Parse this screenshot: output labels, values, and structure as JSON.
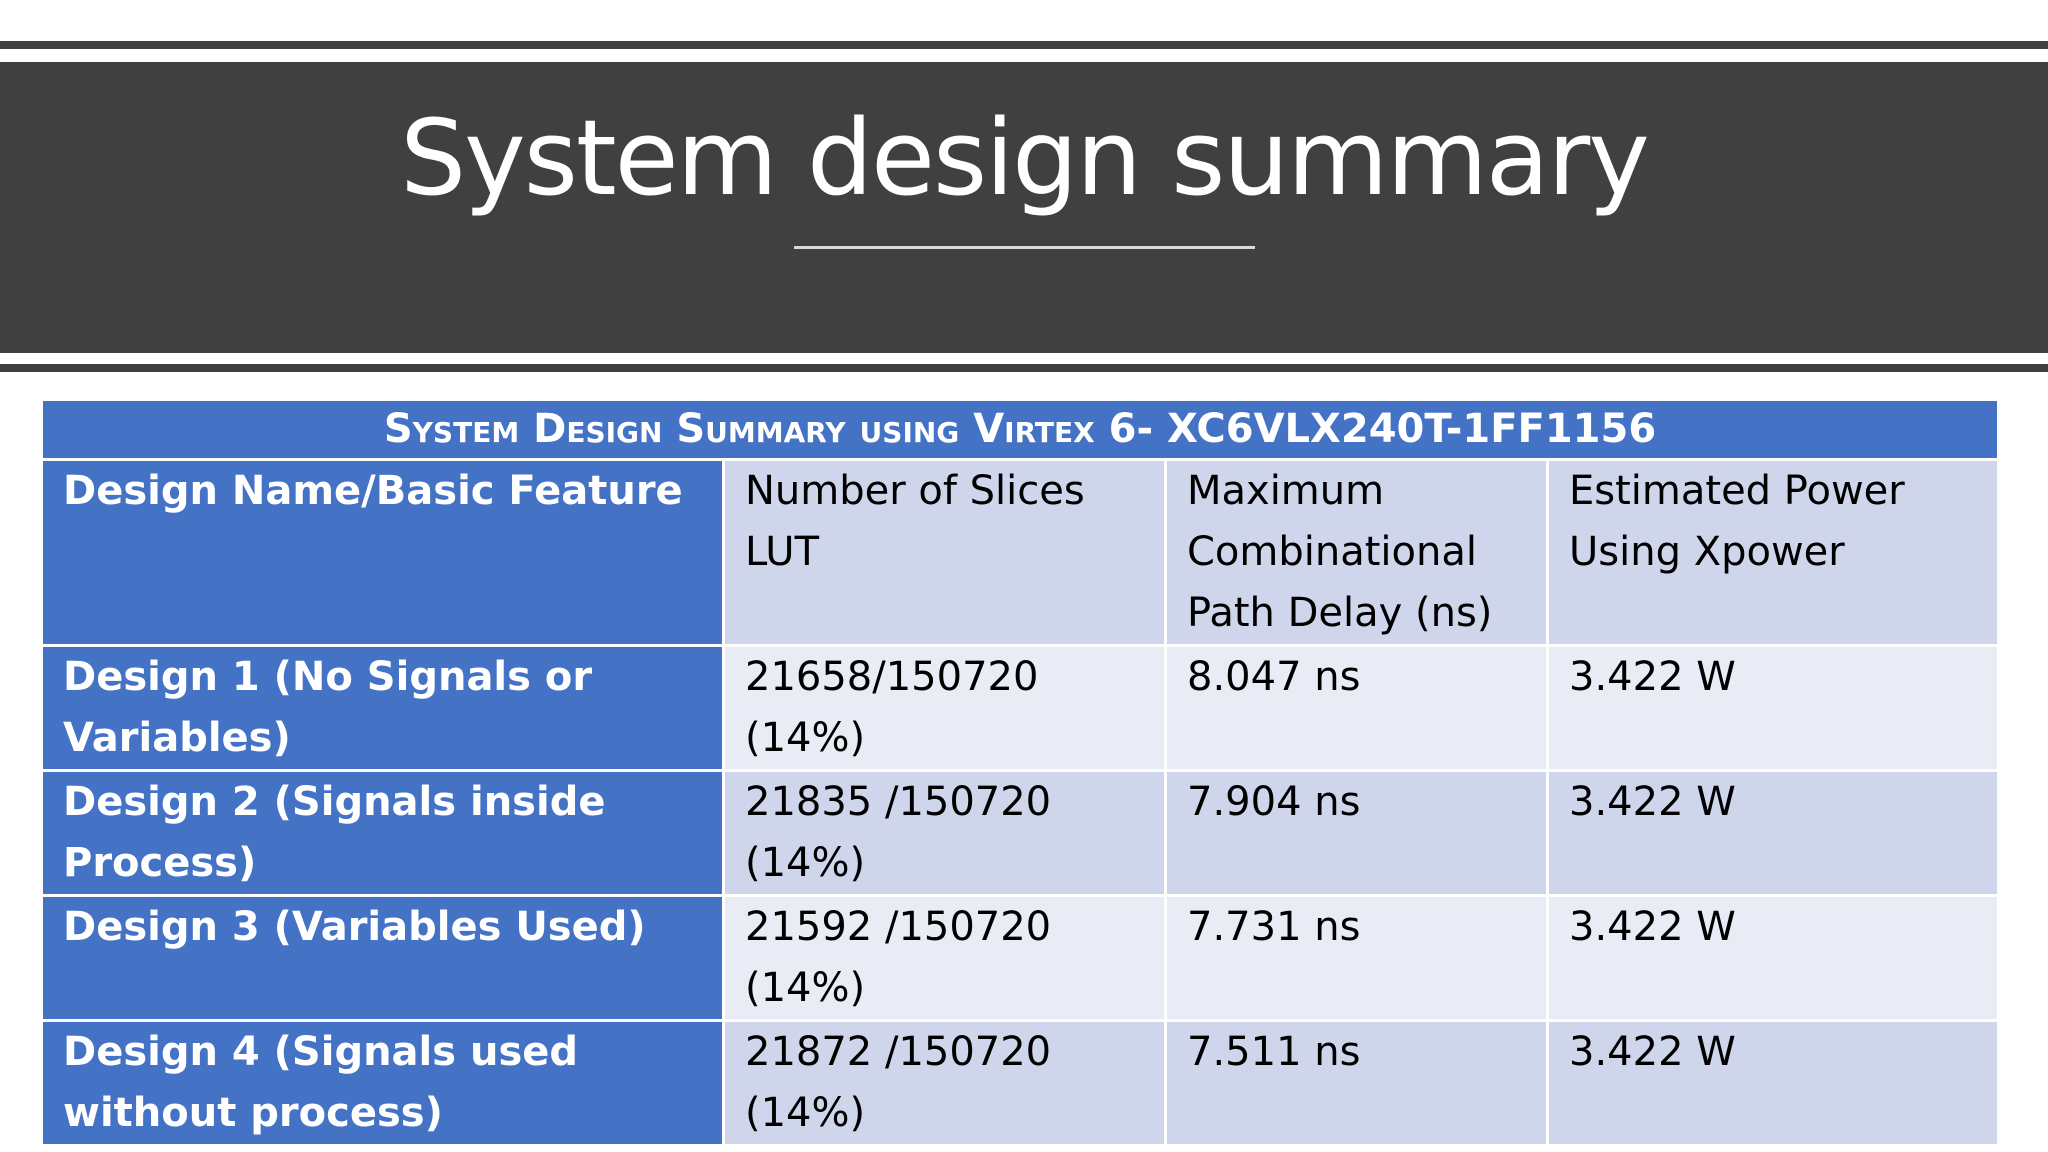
{
  "slide": {
    "title": "System design summary"
  },
  "table": {
    "caption": "System Design Summary using Virtex 6- XC6VLX240T-1FF1156",
    "headers": [
      [
        "Design Name/Basic Feature"
      ],
      [
        "Number of Slices",
        "LUT"
      ],
      [
        "Maximum",
        "Combinational",
        "Path Delay (ns)"
      ],
      [
        "Estimated Power",
        "Using Xpower"
      ]
    ],
    "rows": [
      {
        "name": [
          "Design 1 (No Signals or",
          "Variables)"
        ],
        "slices": [
          "21658/150720",
          "(14%)"
        ],
        "delay": "8.047 ns",
        "power": "3.422 W"
      },
      {
        "name": [
          "Design 2 (Signals inside",
          "Process)"
        ],
        "slices": [
          "21835 /150720",
          "(14%)"
        ],
        "delay": "7.904 ns",
        "power": "3.422 W"
      },
      {
        "name": [
          "Design 3 (Variables Used)"
        ],
        "slices": [
          "21592 /150720",
          "(14%)"
        ],
        "delay": "7.731 ns",
        "power": "3.422 W"
      },
      {
        "name": [
          "Design 4 (Signals used",
          "without process)"
        ],
        "slices": [
          "21872 /150720",
          "(14%)"
        ],
        "delay": "7.511 ns",
        "power": "3.422 W"
      }
    ]
  },
  "colors": {
    "title_band": "#404040",
    "header_blue": "#4472c4",
    "band_dark": "#cfd5ea",
    "band_light": "#e9ebf5"
  }
}
